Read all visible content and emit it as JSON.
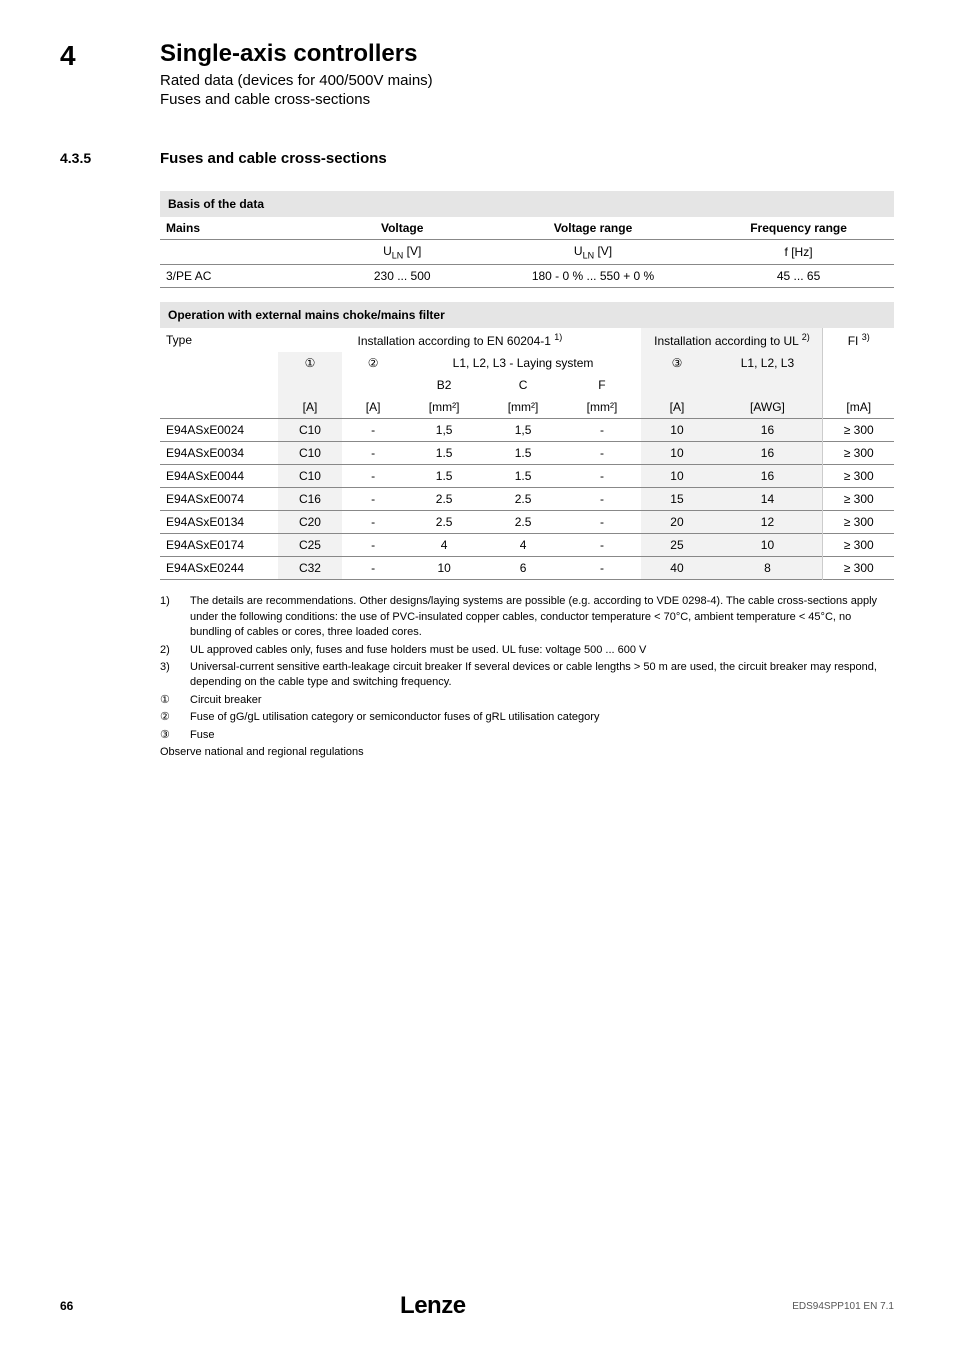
{
  "header": {
    "chapter_num": "4",
    "chapter_title": "Single-axis controllers",
    "sub1": "Rated data (devices for 400/500V mains)",
    "sub2": "Fuses and cable cross-sections"
  },
  "section": {
    "num": "4.3.5",
    "title": "Fuses and cable cross-sections"
  },
  "table1": {
    "title": "Basis of the data",
    "headers": [
      "Mains",
      "Voltage",
      "Voltage range",
      "Frequency range"
    ],
    "units": [
      "",
      "U_LN [V]",
      "U_LN [V]",
      "f [Hz]"
    ],
    "row": [
      "3/PE AC",
      "230 ... 500",
      "180 - 0 % ... 550 + 0 %",
      "45 ... 65"
    ]
  },
  "table2": {
    "title": "Operation with external mains choke/mains filter",
    "h1": {
      "type": "Type",
      "en": "Installation according to EN 60204-1 ",
      "en_sup": "1)",
      "ul": "Installation according to UL ",
      "ul_sup": "2)",
      "fi": "FI ",
      "fi_sup": "3)"
    },
    "h2": {
      "c1": "①",
      "c2": "②",
      "laying": "L1, L2, L3 - Laying system",
      "c3": "③",
      "l123": "L1, L2, L3"
    },
    "h3": {
      "b2": "B2",
      "cc": "C",
      "f": "F"
    },
    "h4": {
      "a1": "[A]",
      "a2": "[A]",
      "mm1": "[mm²]",
      "mm2": "[mm²]",
      "mm3": "[mm²]",
      "a3": "[A]",
      "awg": "[AWG]",
      "ma": "[mA]"
    },
    "rows": [
      [
        "E94ASxE0024",
        "C10",
        "-",
        "1,5",
        "1,5",
        "-",
        "10",
        "16",
        "≥ 300"
      ],
      [
        "E94ASxE0034",
        "C10",
        "-",
        "1.5",
        "1.5",
        "-",
        "10",
        "16",
        "≥ 300"
      ],
      [
        "E94ASxE0044",
        "C10",
        "-",
        "1.5",
        "1.5",
        "-",
        "10",
        "16",
        "≥ 300"
      ],
      [
        "E94ASxE0074",
        "C16",
        "-",
        "2.5",
        "2.5",
        "-",
        "15",
        "14",
        "≥ 300"
      ],
      [
        "E94ASxE0134",
        "C20",
        "-",
        "2.5",
        "2.5",
        "-",
        "20",
        "12",
        "≥ 300"
      ],
      [
        "E94ASxE0174",
        "C25",
        "-",
        "4",
        "4",
        "-",
        "25",
        "10",
        "≥ 300"
      ],
      [
        "E94ASxE0244",
        "C32",
        "-",
        "10",
        "6",
        "-",
        "40",
        "8",
        "≥ 300"
      ]
    ]
  },
  "notes": [
    [
      "1)",
      "The details are recommendations. Other designs/laying systems are possible (e.g. according to VDE 0298-4). The cable cross-sections apply under the following conditions: the use of PVC-insulated copper cables, conductor temperature < 70°C, ambient temperature < 45°C, no bundling of cables or cores, three loaded cores."
    ],
    [
      "2)",
      "UL approved cables only, fuses and fuse holders must be used. UL fuse: voltage 500 ... 600 V"
    ],
    [
      "3)",
      "Universal-current sensitive earth-leakage circuit breaker If several devices or cable lengths > 50 m are used, the circuit breaker may respond, depending on the cable type and switching frequency."
    ],
    [
      "①",
      "Circuit breaker"
    ],
    [
      "②",
      "Fuse of gG/gL utilisation category or semiconductor fuses of gRL utilisation category"
    ],
    [
      "③",
      "Fuse"
    ]
  ],
  "notes_final": "Observe national and regional regulations",
  "footer": {
    "page": "66",
    "brand": "Lenze",
    "doc": "EDS94SPP101 EN 7.1"
  }
}
